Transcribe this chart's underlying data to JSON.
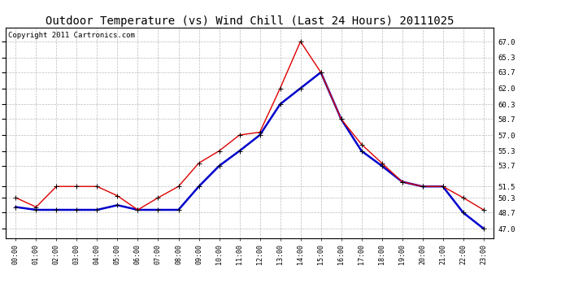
{
  "title": "Outdoor Temperature (vs) Wind Chill (Last 24 Hours) 20111025",
  "copyright": "Copyright 2011 Cartronics.com",
  "x_labels": [
    "00:00",
    "01:00",
    "02:00",
    "03:00",
    "04:00",
    "05:00",
    "06:00",
    "07:00",
    "08:00",
    "09:00",
    "10:00",
    "11:00",
    "12:00",
    "13:00",
    "14:00",
    "15:00",
    "16:00",
    "17:00",
    "18:00",
    "19:00",
    "20:00",
    "21:00",
    "22:00",
    "23:00"
  ],
  "temp_red": [
    50.3,
    49.3,
    51.5,
    51.5,
    51.5,
    50.5,
    49.0,
    50.3,
    51.5,
    54.0,
    55.3,
    57.0,
    57.3,
    62.0,
    67.0,
    63.7,
    58.7,
    56.0,
    54.0,
    52.0,
    51.5,
    51.5,
    50.3,
    49.0
  ],
  "wind_blue": [
    49.3,
    49.0,
    49.0,
    49.0,
    49.0,
    49.5,
    49.0,
    49.0,
    49.0,
    51.5,
    53.7,
    55.3,
    57.0,
    60.3,
    62.0,
    63.7,
    58.7,
    55.3,
    53.7,
    52.0,
    51.5,
    51.5,
    48.7,
    47.0
  ],
  "ylim": [
    46.0,
    68.5
  ],
  "yticks": [
    47.0,
    48.7,
    50.3,
    51.5,
    53.7,
    55.3,
    57.0,
    58.7,
    60.3,
    62.0,
    63.7,
    65.3,
    67.0
  ],
  "yticklabels": [
    "47.0",
    "48.7",
    "50.3",
    "51.5",
    "53.7",
    "55.3",
    "57.0",
    "58.7",
    "60.3",
    "62.0",
    "63.7",
    "65.3",
    "67.0"
  ],
  "background_color": "#ffffff",
  "plot_bg_color": "#ffffff",
  "grid_color": "#bbbbbb",
  "red_color": "#dd0000",
  "blue_color": "#0000cc",
  "title_fontsize": 10,
  "copyright_fontsize": 6.5
}
